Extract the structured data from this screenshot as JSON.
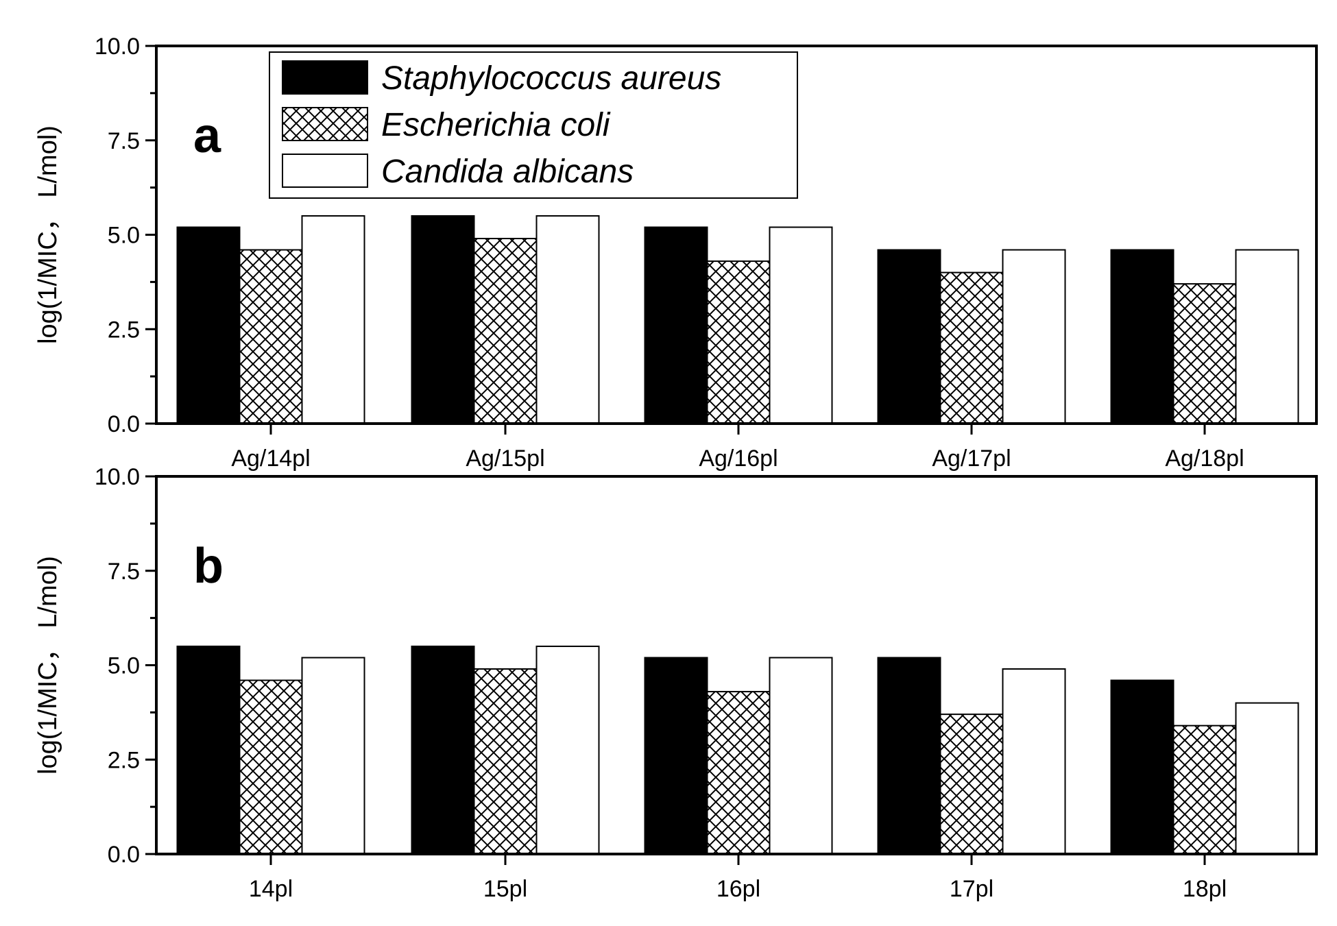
{
  "chart_data": [
    {
      "type": "bar",
      "panel_label": "a",
      "categories": [
        "Ag/14pl",
        "Ag/15pl",
        "Ag/16pl",
        "Ag/17pl",
        "Ag/18pl"
      ],
      "series": [
        {
          "name": "Staphylococcus aureus",
          "fill": "solid",
          "values": [
            5.2,
            5.5,
            5.2,
            4.6,
            4.6
          ]
        },
        {
          "name": "Escherichia coli",
          "fill": "crosshatch",
          "values": [
            4.6,
            4.9,
            4.3,
            4.0,
            3.7
          ]
        },
        {
          "name": "Candida albicans",
          "fill": "empty",
          "values": [
            5.5,
            5.5,
            5.2,
            4.6,
            4.6
          ]
        }
      ],
      "ylabel": "log(1/MIC， L/mol)",
      "xlabel": "",
      "ylim": [
        0,
        10
      ],
      "yticks": [
        "0.0",
        "2.5",
        "5.0",
        "7.5",
        "10.0"
      ],
      "legend": "top-left"
    },
    {
      "type": "bar",
      "panel_label": "b",
      "categories": [
        "14pl",
        "15pl",
        "16pl",
        "17pl",
        "18pl"
      ],
      "series": [
        {
          "name": "Staphylococcus aureus",
          "fill": "solid",
          "values": [
            5.5,
            5.5,
            5.2,
            5.2,
            4.6
          ]
        },
        {
          "name": "Escherichia coli",
          "fill": "crosshatch",
          "values": [
            4.6,
            4.9,
            4.3,
            3.7,
            3.4
          ]
        },
        {
          "name": "Candida albicans",
          "fill": "empty",
          "values": [
            5.2,
            5.5,
            5.2,
            4.9,
            4.0
          ]
        }
      ],
      "ylabel": "log(1/MIC， L/mol)",
      "xlabel": "",
      "ylim": [
        0,
        10
      ],
      "yticks": [
        "0.0",
        "2.5",
        "5.0",
        "7.5",
        "10.0"
      ]
    }
  ],
  "colors": {
    "solid": "#000000",
    "outline": "#000000",
    "background": "#ffffff"
  }
}
